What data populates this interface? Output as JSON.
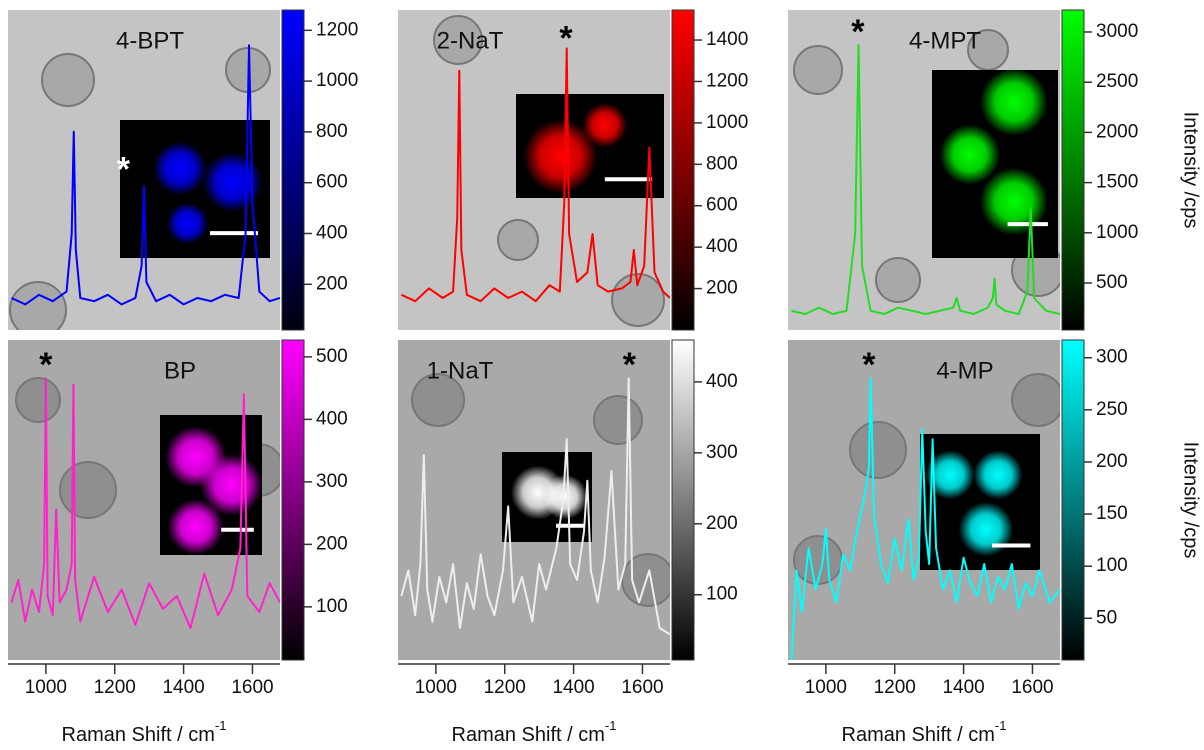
{
  "chart_data": [
    {
      "type": "line",
      "title": "4-BPT",
      "color": "#0000ff",
      "xlim": [
        890,
        1680
      ],
      "ylim": [
        0,
        100
      ],
      "x": [
        900,
        940,
        980,
        1020,
        1060,
        1075,
        1081,
        1087,
        1100,
        1140,
        1180,
        1220,
        1260,
        1278,
        1285,
        1292,
        1320,
        1360,
        1400,
        1440,
        1480,
        1520,
        1560,
        1580,
        1590,
        1600,
        1620,
        1650,
        1680
      ],
      "values": [
        10,
        8,
        11,
        9,
        12,
        30,
        62,
        25,
        10,
        9,
        11,
        8,
        10,
        20,
        45,
        15,
        9,
        11,
        8,
        10,
        9,
        11,
        10,
        30,
        89,
        40,
        12,
        9,
        10
      ],
      "annotations": [
        {
          "text": "*",
          "x": 1225,
          "y": 52,
          "color": "#ffffff"
        }
      ],
      "colorbar": {
        "lim": [
          20,
          1280
        ],
        "ticks": [
          200,
          400,
          600,
          800,
          1000,
          1200
        ],
        "colormap": [
          "#000010",
          "#0000ff"
        ]
      }
    },
    {
      "type": "line",
      "title": "2-NaT",
      "color": "#ff0000",
      "xlim": [
        890,
        1680
      ],
      "ylim": [
        0,
        100
      ],
      "x": [
        900,
        940,
        980,
        1020,
        1050,
        1062,
        1068,
        1074,
        1090,
        1130,
        1170,
        1210,
        1250,
        1290,
        1330,
        1360,
        1373,
        1380,
        1387,
        1410,
        1440,
        1455,
        1470,
        1500,
        1540,
        1565,
        1575,
        1585,
        1605,
        1620,
        1635,
        1660,
        1680
      ],
      "values": [
        11,
        9,
        13,
        10,
        12,
        35,
        81,
        25,
        11,
        9,
        13,
        10,
        12,
        9,
        14,
        12,
        40,
        88,
        30,
        15,
        18,
        30,
        14,
        12,
        13,
        15,
        25,
        14,
        20,
        57,
        18,
        12,
        10
      ],
      "annotations": [
        {
          "text": "*",
          "x": 1378,
          "y": 93,
          "color": "#000000"
        }
      ],
      "colorbar": {
        "lim": [
          0,
          1545
        ],
        "ticks": [
          200,
          400,
          600,
          800,
          1000,
          1200,
          1400
        ],
        "colormap": [
          "#000000",
          "#ff0000"
        ]
      }
    },
    {
      "type": "line",
      "title": "4-MPT",
      "color": "#22dd22",
      "xlim": [
        890,
        1680
      ],
      "ylim": [
        0,
        100
      ],
      "x": [
        900,
        940,
        980,
        1020,
        1060,
        1085,
        1095,
        1105,
        1130,
        1170,
        1210,
        1250,
        1290,
        1330,
        1370,
        1380,
        1390,
        1430,
        1470,
        1485,
        1490,
        1495,
        1520,
        1560,
        1585,
        1595,
        1605,
        1640,
        1680
      ],
      "values": [
        6,
        5,
        7,
        5,
        6,
        30,
        89,
        20,
        6,
        5,
        7,
        6,
        5,
        6,
        7,
        10,
        6,
        5,
        7,
        10,
        16,
        8,
        6,
        5,
        12,
        38,
        10,
        6,
        5
      ],
      "annotations": [
        {
          "text": "*",
          "x": 1093,
          "y": 95,
          "color": "#000000"
        }
      ],
      "colorbar": {
        "lim": [
          32,
          3219
        ],
        "ticks": [
          500,
          1000,
          1500,
          2000,
          2500,
          3000
        ],
        "colormap": [
          "#000000",
          "#00ff00"
        ]
      },
      "ylabel": "Intensity /cps"
    },
    {
      "type": "line",
      "title": "BP",
      "color": "#ff22cc",
      "xlim": [
        890,
        1680
      ],
      "ylim": [
        0,
        100
      ],
      "x": [
        900,
        920,
        940,
        960,
        980,
        995,
        1000,
        1005,
        1020,
        1030,
        1040,
        1060,
        1075,
        1080,
        1085,
        1100,
        1140,
        1180,
        1220,
        1260,
        1300,
        1340,
        1380,
        1420,
        1460,
        1500,
        1540,
        1565,
        1575,
        1585,
        1620,
        1650,
        1680
      ],
      "values": [
        18,
        25,
        12,
        22,
        15,
        30,
        88,
        20,
        14,
        47,
        18,
        22,
        30,
        86,
        25,
        12,
        26,
        15,
        22,
        11,
        24,
        16,
        20,
        10,
        27,
        14,
        22,
        35,
        83,
        20,
        15,
        24,
        18
      ],
      "annotations": [
        {
          "text": "*",
          "x": 1000,
          "y": 94,
          "color": "#000000"
        }
      ],
      "colorbar": {
        "lim": [
          15,
          527
        ],
        "ticks": [
          100,
          200,
          300,
          400,
          500
        ],
        "colormap": [
          "#000000",
          "#ff00ff"
        ]
      },
      "xticks": [
        1000,
        1200,
        1400,
        1600
      ],
      "xlabel": "Raman Shift / cm",
      "xlabel_sup": "-1"
    },
    {
      "type": "line",
      "title": "1-NaT",
      "color": "#eeeeee",
      "xlim": [
        890,
        1680
      ],
      "ylim": [
        0,
        100
      ],
      "x": [
        900,
        920,
        940,
        955,
        965,
        975,
        990,
        1010,
        1030,
        1050,
        1070,
        1090,
        1110,
        1130,
        1150,
        1170,
        1195,
        1210,
        1225,
        1250,
        1280,
        1300,
        1320,
        1350,
        1370,
        1380,
        1390,
        1410,
        1430,
        1440,
        1450,
        1470,
        1490,
        1510,
        1530,
        1550,
        1560,
        1570,
        1590,
        1620,
        1650,
        1680
      ],
      "values": [
        20,
        28,
        14,
        30,
        64,
        22,
        12,
        26,
        18,
        30,
        10,
        24,
        16,
        33,
        20,
        14,
        28,
        48,
        18,
        26,
        12,
        30,
        22,
        35,
        50,
        69,
        30,
        25,
        40,
        56,
        28,
        18,
        32,
        59,
        22,
        30,
        88,
        25,
        18,
        28,
        10,
        8
      ],
      "annotations": [
        {
          "text": "*",
          "x": 1562,
          "y": 94,
          "color": "#000000"
        }
      ],
      "colorbar": {
        "lim": [
          8,
          459
        ],
        "ticks": [
          100,
          200,
          300,
          400
        ],
        "colormap": [
          "#000000",
          "#ffffff"
        ]
      },
      "xticks": [
        1000,
        1200,
        1400,
        1600
      ],
      "xlabel": "Raman Shift / cm",
      "xlabel_sup": "-1"
    },
    {
      "type": "line",
      "title": "4-MP",
      "color": "#00ffff",
      "xlim": [
        890,
        1680
      ],
      "ylim": [
        0,
        100
      ],
      "x": [
        900,
        915,
        930,
        950,
        970,
        990,
        1000,
        1010,
        1030,
        1050,
        1070,
        1090,
        1110,
        1125,
        1130,
        1140,
        1160,
        1180,
        1200,
        1220,
        1240,
        1255,
        1270,
        1280,
        1290,
        1300,
        1310,
        1320,
        1340,
        1360,
        1380,
        1400,
        1420,
        1440,
        1460,
        1480,
        1500,
        1520,
        1540,
        1560,
        1580,
        1600,
        1620,
        1650,
        1680
      ],
      "values": [
        0,
        28,
        15,
        35,
        22,
        30,
        41,
        25,
        18,
        33,
        28,
        40,
        50,
        60,
        88,
        45,
        30,
        24,
        38,
        28,
        44,
        25,
        32,
        72,
        40,
        30,
        69,
        35,
        22,
        28,
        18,
        32,
        24,
        20,
        30,
        18,
        26,
        22,
        30,
        16,
        24,
        20,
        28,
        18,
        22
      ],
      "annotations": [
        {
          "text": "*",
          "x": 1125,
          "y": 94,
          "color": "#000000"
        }
      ],
      "colorbar": {
        "lim": [
          10,
          317
        ],
        "ticks": [
          50,
          100,
          150,
          200,
          250,
          300
        ],
        "colormap": [
          "#000000",
          "#00ffff"
        ]
      },
      "xticks": [
        1000,
        1200,
        1400,
        1600
      ],
      "xlabel": "Raman Shift / cm",
      "xlabel_sup": "-1",
      "ylabel": "Intensity /cps"
    }
  ]
}
